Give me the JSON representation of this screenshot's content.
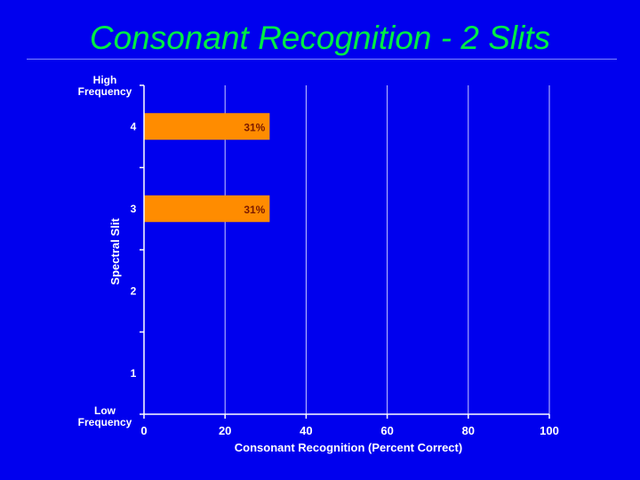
{
  "slide": {
    "title": "Consonant Recognition - 2 Slits"
  },
  "chart_data": {
    "type": "bar",
    "orientation": "horizontal",
    "categories": [
      "1",
      "2",
      "3",
      "4"
    ],
    "values": [
      null,
      null,
      31,
      31
    ],
    "data_labels": [
      "",
      "",
      "31%",
      "31%"
    ],
    "xlabel": "Consonant Recognition (Percent Correct)",
    "ylabel": "Spectral Slit",
    "y_top_label": [
      "High",
      "Frequency"
    ],
    "y_bottom_label": [
      "Low",
      "Frequency"
    ],
    "xlim": [
      0,
      100
    ],
    "xticks": [
      0,
      20,
      40,
      60,
      80,
      100
    ],
    "grid": true,
    "colors": {
      "background": "#0000ee",
      "bar": "#ff8c00",
      "bar_label": "#7a1a00",
      "axis": "#ffffff",
      "title": "#00ee44",
      "grid": "#c8c8ff"
    }
  }
}
